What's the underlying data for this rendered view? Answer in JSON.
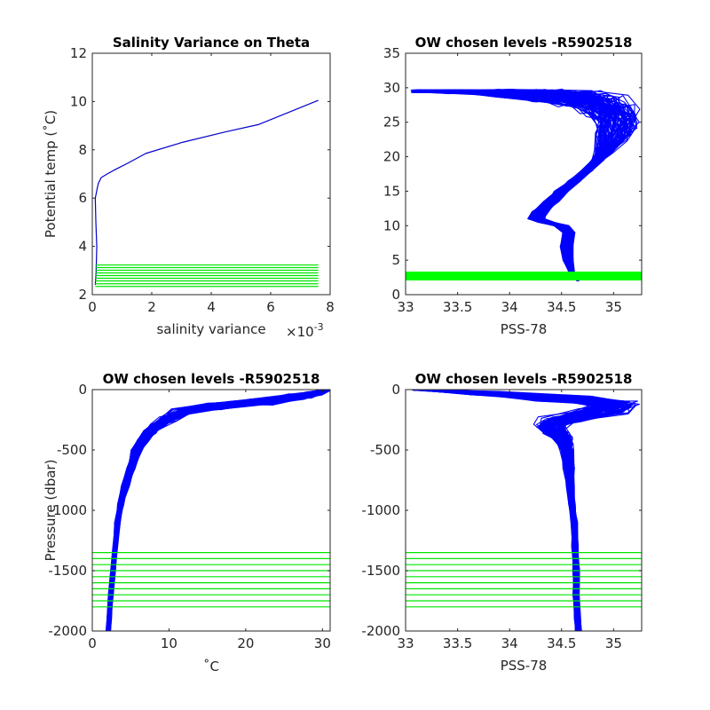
{
  "chart_data": [
    {
      "id": "p1",
      "type": "line",
      "title": "Salinity Variance on Theta",
      "xlabel": "salinity variance",
      "x_exponent_label": "×10",
      "x_exponent_power": "-3",
      "ylabel": "Potential temp (˚C)",
      "xlim": [
        0,
        8
      ],
      "ylim": [
        2,
        12
      ],
      "xticks": [
        0,
        2,
        4,
        6,
        8
      ],
      "yticks": [
        2,
        4,
        6,
        8,
        10,
        12
      ],
      "xtick_labels": [
        "0",
        "2",
        "4",
        "6",
        "8"
      ],
      "ytick_labels": [
        "2",
        "4",
        "6",
        "8",
        "10",
        "12"
      ],
      "series_color": "#0000cc",
      "level_color": "#00e600",
      "series": [
        {
          "x": [
            0.1,
            0.13,
            0.15,
            0.12,
            0.1,
            0.15,
            0.2,
            0.3,
            0.5,
            0.8,
            1.2,
            1.8,
            3.0,
            4.5,
            5.6,
            7.6
          ],
          "y": [
            2.4,
            3.0,
            4.0,
            5.0,
            6.0,
            6.3,
            6.6,
            6.85,
            7.0,
            7.2,
            7.45,
            7.85,
            8.3,
            8.75,
            9.05,
            10.05
          ]
        }
      ],
      "levels": {
        "axis": "y",
        "xrange": [
          0.1,
          7.6
        ],
        "values": [
          2.34,
          2.45,
          2.57,
          2.68,
          2.79,
          2.9,
          3.01,
          3.12,
          3.23
        ]
      }
    },
    {
      "id": "p2",
      "type": "line",
      "title": "OW chosen levels -R5902518",
      "xlabel": "PSS-78",
      "ylabel": "",
      "xlim": [
        33,
        35.27
      ],
      "ylim": [
        0,
        35
      ],
      "xticks": [
        33,
        33.5,
        34,
        34.5,
        35
      ],
      "yticks": [
        0,
        5,
        10,
        15,
        20,
        25,
        30,
        35
      ],
      "xtick_labels": [
        "33",
        "33.5",
        "34",
        "34.5",
        "35"
      ],
      "ytick_labels": [
        "0",
        "5",
        "10",
        "15",
        "20",
        "25",
        "30",
        "35"
      ],
      "series_color": "#0000ff",
      "level_color": "#00ff00",
      "profile_count": 90,
      "series": [
        {
          "x": [
            34.66,
            34.6,
            34.56,
            34.55,
            34.57,
            34.5,
            34.35,
            34.26,
            34.3,
            34.4,
            34.5,
            34.62,
            34.75,
            34.85,
            34.92,
            35.0,
            35.05,
            35.0,
            34.9,
            34.7,
            34.4,
            34.0,
            33.5,
            33.1
          ],
          "y": [
            2.0,
            3.0,
            5.0,
            7.0,
            9.0,
            10.0,
            10.5,
            11.0,
            12.0,
            13.5,
            15.0,
            16.5,
            18.0,
            19.5,
            21.0,
            23.0,
            25.0,
            26.5,
            27.5,
            28.3,
            28.8,
            29.2,
            29.4,
            29.5
          ],
          "x_spread": [
            0.01,
            0.03,
            0.05,
            0.06,
            0.06,
            0.07,
            0.08,
            0.08,
            0.08,
            0.07,
            0.07,
            0.06,
            0.06,
            0.06,
            0.1,
            0.18,
            0.22,
            0.25,
            0.25,
            0.25,
            0.2,
            0.15,
            0.1,
            0.05
          ],
          "y_spread": [
            0,
            0,
            0,
            0,
            0,
            0,
            0,
            0,
            0,
            0,
            0,
            0,
            0,
            0,
            0.5,
            0.8,
            1.0,
            1.2,
            1.5,
            1.3,
            1.0,
            0.6,
            0.3,
            0.2
          ]
        }
      ],
      "levels": {
        "axis": "y",
        "xrange": [
          33,
          35.27
        ],
        "values": [
          2.2,
          2.4,
          2.6,
          2.8,
          3.0,
          3.2
        ]
      }
    },
    {
      "id": "p3",
      "type": "line",
      "title": "OW chosen levels -R5902518",
      "xlabel": "˚C",
      "ylabel": "Pressure (dbar)",
      "xlim": [
        0,
        31
      ],
      "ylim": [
        -2000,
        0
      ],
      "xticks": [
        0,
        10,
        20,
        30
      ],
      "yticks": [
        -2000,
        -1500,
        -1000,
        -500,
        0
      ],
      "xtick_labels": [
        "0",
        "10",
        "20",
        "30"
      ],
      "ytick_labels": [
        "-2000",
        "-1500",
        "-1000",
        "-500",
        "0"
      ],
      "series_color": "#0000ff",
      "level_color": "#00e600",
      "profile_count": 90,
      "series": [
        {
          "x": [
            30.5,
            29.0,
            27.0,
            22.0,
            16.0,
            12.0,
            10.0,
            8.5,
            7.5,
            6.5,
            5.8,
            5.0,
            4.3,
            3.7,
            3.3,
            3.0,
            2.7,
            2.4,
            2.2,
            2.1
          ],
          "y": [
            0,
            -30,
            -60,
            -100,
            -140,
            -180,
            -240,
            -300,
            -350,
            -420,
            -500,
            -650,
            -800,
            -950,
            -1100,
            -1300,
            -1500,
            -1700,
            -1900,
            -2000
          ],
          "x_spread": [
            0.8,
            1.2,
            1.5,
            1.8,
            1.8,
            1.5,
            1.2,
            1.0,
            0.9,
            0.8,
            0.7,
            0.6,
            0.5,
            0.4,
            0.35,
            0.3,
            0.3,
            0.3,
            0.3,
            0.3
          ],
          "y_spread": [
            5,
            15,
            25,
            30,
            30,
            25,
            20,
            15,
            10,
            5,
            0,
            0,
            0,
            0,
            0,
            0,
            0,
            0,
            0,
            0
          ]
        }
      ],
      "levels": {
        "axis": "y",
        "xrange": [
          0,
          31
        ],
        "values": [
          -1350,
          -1400,
          -1450,
          -1500,
          -1550,
          -1600,
          -1650,
          -1700,
          -1750,
          -1800
        ]
      }
    },
    {
      "id": "p4",
      "type": "line",
      "title": "OW chosen levels -R5902518",
      "xlabel": "PSS-78",
      "ylabel": "",
      "xlim": [
        33,
        35.27
      ],
      "ylim": [
        -2000,
        0
      ],
      "xticks": [
        33,
        33.5,
        34,
        34.5,
        35
      ],
      "yticks": [
        -2000,
        -1500,
        -1000,
        -500,
        0
      ],
      "xtick_labels": [
        "33",
        "33.5",
        "34",
        "34.5",
        "35"
      ],
      "ytick_labels": [
        "-2000",
        "-1500",
        "-1000",
        "-500",
        "0"
      ],
      "series_color": "#0000ff",
      "level_color": "#00e600",
      "profile_count": 90,
      "series": [
        {
          "x": [
            33.1,
            33.8,
            34.5,
            35.0,
            34.9,
            34.5,
            34.4,
            34.45,
            34.5,
            34.53,
            34.55,
            34.57,
            34.58,
            34.6,
            34.62,
            34.63,
            34.64,
            34.64,
            34.65,
            34.66
          ],
          "y": [
            0,
            -30,
            -70,
            -120,
            -180,
            -250,
            -300,
            -350,
            -400,
            -450,
            -500,
            -650,
            -800,
            -950,
            -1100,
            -1300,
            -1500,
            -1700,
            -1900,
            -2000
          ],
          "x_spread": [
            0.05,
            0.2,
            0.3,
            0.25,
            0.25,
            0.2,
            0.15,
            0.12,
            0.1,
            0.08,
            0.06,
            0.05,
            0.04,
            0.03,
            0.03,
            0.03,
            0.03,
            0.03,
            0.03,
            0.03
          ],
          "y_spread": [
            5,
            15,
            25,
            30,
            30,
            25,
            20,
            15,
            10,
            5,
            0,
            0,
            0,
            0,
            0,
            0,
            0,
            0,
            0,
            0
          ]
        }
      ],
      "levels": {
        "axis": "y",
        "xrange": [
          33,
          35.27
        ],
        "values": [
          -1350,
          -1400,
          -1450,
          -1500,
          -1550,
          -1600,
          -1650,
          -1700,
          -1750,
          -1800
        ]
      }
    }
  ]
}
